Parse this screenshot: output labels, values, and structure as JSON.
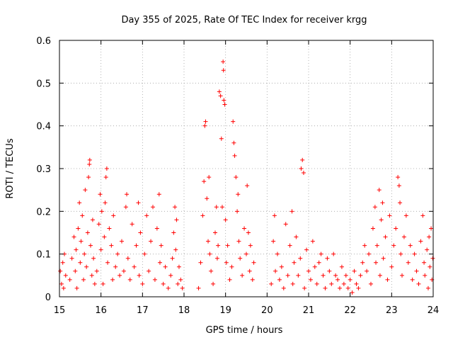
{
  "chart_data": {
    "type": "scatter",
    "title": "Day 355 of 2025, Rate Of TEC Index for receiver krgg",
    "xlabel": "GPS time / hours",
    "ylabel": "ROTI / TECUs",
    "xlim": [
      15,
      24
    ],
    "ylim": [
      0,
      0.6
    ],
    "x_ticks": [
      15,
      16,
      17,
      18,
      19,
      20,
      21,
      22,
      23,
      24
    ],
    "y_ticks": [
      0,
      0.1,
      0.2,
      0.3,
      0.4,
      0.5,
      0.6
    ],
    "x_tick_labels": [
      "15",
      "16",
      "17",
      "18",
      "19",
      "20",
      "21",
      "22",
      "23",
      "24"
    ],
    "y_tick_labels": [
      "0",
      "0.1",
      "0.2",
      "0.3",
      "0.4",
      "0.5",
      "0.6"
    ],
    "grid": true,
    "marker": "+",
    "color": "#ff0000",
    "series": [
      {
        "points": [
          [
            15.02,
            0.06
          ],
          [
            15.05,
            0.03
          ],
          [
            15.08,
            0.08
          ],
          [
            15.1,
            0.02
          ],
          [
            15.12,
            0.1
          ],
          [
            15.15,
            0.05
          ],
          [
            15.25,
            0.04
          ],
          [
            15.3,
            0.09
          ],
          [
            15.35,
            0.14
          ],
          [
            15.38,
            0.06
          ],
          [
            15.4,
            0.11
          ],
          [
            15.42,
            0.02
          ],
          [
            15.45,
            0.16
          ],
          [
            15.48,
            0.22
          ],
          [
            15.5,
            0.08
          ],
          [
            15.52,
            0.13
          ],
          [
            15.55,
            0.19
          ],
          [
            15.58,
            0.04
          ],
          [
            15.6,
            0.1
          ],
          [
            15.62,
            0.25
          ],
          [
            15.65,
            0.07
          ],
          [
            15.68,
            0.15
          ],
          [
            15.7,
            0.28
          ],
          [
            15.72,
            0.31
          ],
          [
            15.73,
            0.32
          ],
          [
            15.75,
            0.12
          ],
          [
            15.78,
            0.05
          ],
          [
            15.8,
            0.18
          ],
          [
            15.82,
            0.09
          ],
          [
            15.85,
            0.03
          ],
          [
            15.9,
            0.06
          ],
          [
            15.95,
            0.17
          ],
          [
            15.98,
            0.24
          ],
          [
            16.0,
            0.11
          ],
          [
            16.02,
            0.2
          ],
          [
            16.05,
            0.03
          ],
          [
            16.08,
            0.14
          ],
          [
            16.1,
            0.22
          ],
          [
            16.12,
            0.28
          ],
          [
            16.14,
            0.3
          ],
          [
            16.16,
            0.08
          ],
          [
            16.2,
            0.16
          ],
          [
            16.25,
            0.12
          ],
          [
            16.28,
            0.04
          ],
          [
            16.3,
            0.19
          ],
          [
            16.35,
            0.07
          ],
          [
            16.4,
            0.1
          ],
          [
            16.45,
            0.05
          ],
          [
            16.5,
            0.13
          ],
          [
            16.55,
            0.06
          ],
          [
            16.6,
            0.21
          ],
          [
            16.62,
            0.24
          ],
          [
            16.65,
            0.09
          ],
          [
            16.7,
            0.04
          ],
          [
            16.75,
            0.17
          ],
          [
            16.8,
            0.07
          ],
          [
            16.85,
            0.12
          ],
          [
            16.9,
            0.22
          ],
          [
            16.92,
            0.05
          ],
          [
            16.95,
            0.15
          ],
          [
            17.0,
            0.03
          ],
          [
            17.05,
            0.1
          ],
          [
            17.1,
            0.19
          ],
          [
            17.15,
            0.06
          ],
          [
            17.2,
            0.13
          ],
          [
            17.25,
            0.21
          ],
          [
            17.3,
            0.04
          ],
          [
            17.35,
            0.16
          ],
          [
            17.4,
            0.24
          ],
          [
            17.42,
            0.08
          ],
          [
            17.45,
            0.12
          ],
          [
            17.5,
            0.03
          ],
          [
            17.55,
            0.07
          ],
          [
            17.62,
            0.02
          ],
          [
            17.68,
            0.05
          ],
          [
            17.72,
            0.09
          ],
          [
            17.75,
            0.15
          ],
          [
            17.78,
            0.21
          ],
          [
            17.8,
            0.11
          ],
          [
            17.82,
            0.18
          ],
          [
            17.85,
            0.03
          ],
          [
            17.88,
            0.07
          ],
          [
            17.92,
            0.04
          ],
          [
            17.96,
            0.02
          ],
          [
            18.35,
            0.02
          ],
          [
            18.4,
            0.08
          ],
          [
            18.45,
            0.19
          ],
          [
            18.48,
            0.27
          ],
          [
            18.5,
            0.4
          ],
          [
            18.52,
            0.41
          ],
          [
            18.55,
            0.23
          ],
          [
            18.58,
            0.13
          ],
          [
            18.6,
            0.28
          ],
          [
            18.62,
            0.1
          ],
          [
            18.65,
            0.06
          ],
          [
            18.7,
            0.03
          ],
          [
            18.75,
            0.15
          ],
          [
            18.78,
            0.21
          ],
          [
            18.8,
            0.09
          ],
          [
            18.82,
            0.12
          ],
          [
            18.85,
            0.48
          ],
          [
            18.88,
            0.47
          ],
          [
            18.9,
            0.37
          ],
          [
            18.92,
            0.21
          ],
          [
            18.94,
            0.55
          ],
          [
            18.95,
            0.53
          ],
          [
            18.96,
            0.46
          ],
          [
            18.98,
            0.45
          ],
          [
            19.0,
            0.18
          ],
          [
            19.02,
            0.08
          ],
          [
            19.05,
            0.12
          ],
          [
            19.1,
            0.04
          ],
          [
            19.15,
            0.07
          ],
          [
            19.18,
            0.41
          ],
          [
            19.2,
            0.36
          ],
          [
            19.22,
            0.33
          ],
          [
            19.25,
            0.28
          ],
          [
            19.28,
            0.2
          ],
          [
            19.3,
            0.24
          ],
          [
            19.32,
            0.13
          ],
          [
            19.35,
            0.09
          ],
          [
            19.4,
            0.05
          ],
          [
            19.45,
            0.16
          ],
          [
            19.5,
            0.1
          ],
          [
            19.52,
            0.26
          ],
          [
            19.55,
            0.15
          ],
          [
            19.58,
            0.06
          ],
          [
            19.6,
            0.12
          ],
          [
            19.65,
            0.04
          ],
          [
            19.68,
            0.08
          ],
          [
            20.1,
            0.03
          ],
          [
            20.15,
            0.13
          ],
          [
            20.18,
            0.19
          ],
          [
            20.2,
            0.06
          ],
          [
            20.25,
            0.1
          ],
          [
            20.3,
            0.04
          ],
          [
            20.35,
            0.07
          ],
          [
            20.4,
            0.02
          ],
          [
            20.45,
            0.17
          ],
          [
            20.5,
            0.05
          ],
          [
            20.55,
            0.12
          ],
          [
            20.6,
            0.2
          ],
          [
            20.62,
            0.03
          ],
          [
            20.65,
            0.08
          ],
          [
            20.7,
            0.14
          ],
          [
            20.75,
            0.05
          ],
          [
            20.8,
            0.09
          ],
          [
            20.82,
            0.3
          ],
          [
            20.85,
            0.32
          ],
          [
            20.88,
            0.29
          ],
          [
            20.9,
            0.02
          ],
          [
            20.95,
            0.11
          ],
          [
            21.0,
            0.06
          ],
          [
            21.05,
            0.04
          ],
          [
            21.1,
            0.13
          ],
          [
            21.15,
            0.07
          ],
          [
            21.2,
            0.03
          ],
          [
            21.25,
            0.08
          ],
          [
            21.3,
            0.1
          ],
          [
            21.35,
            0.05
          ],
          [
            21.4,
            0.02
          ],
          [
            21.45,
            0.09
          ],
          [
            21.5,
            0.06
          ],
          [
            21.55,
            0.03
          ],
          [
            21.6,
            0.1
          ],
          [
            21.65,
            0.05
          ],
          [
            21.7,
            0.04
          ],
          [
            21.75,
            0.02
          ],
          [
            21.8,
            0.07
          ],
          [
            21.85,
            0.03
          ],
          [
            21.9,
            0.05
          ],
          [
            21.95,
            0.02
          ],
          [
            22.0,
            0.04
          ],
          [
            22.05,
            0.01
          ],
          [
            22.1,
            0.06
          ],
          [
            22.15,
            0.03
          ],
          [
            22.2,
            0.02
          ],
          [
            22.25,
            0.05
          ],
          [
            22.3,
            0.08
          ],
          [
            22.35,
            0.12
          ],
          [
            22.4,
            0.06
          ],
          [
            22.45,
            0.1
          ],
          [
            22.5,
            0.03
          ],
          [
            22.55,
            0.16
          ],
          [
            22.6,
            0.21
          ],
          [
            22.62,
            0.08
          ],
          [
            22.65,
            0.12
          ],
          [
            22.7,
            0.25
          ],
          [
            22.72,
            0.05
          ],
          [
            22.75,
            0.18
          ],
          [
            22.78,
            0.22
          ],
          [
            22.8,
            0.09
          ],
          [
            22.85,
            0.14
          ],
          [
            22.9,
            0.04
          ],
          [
            22.95,
            0.19
          ],
          [
            23.0,
            0.07
          ],
          [
            23.05,
            0.12
          ],
          [
            23.1,
            0.16
          ],
          [
            23.15,
            0.28
          ],
          [
            23.18,
            0.26
          ],
          [
            23.2,
            0.22
          ],
          [
            23.22,
            0.1
          ],
          [
            23.25,
            0.05
          ],
          [
            23.3,
            0.14
          ],
          [
            23.35,
            0.19
          ],
          [
            23.4,
            0.08
          ],
          [
            23.45,
            0.12
          ],
          [
            23.5,
            0.04
          ],
          [
            23.55,
            0.1
          ],
          [
            23.6,
            0.06
          ],
          [
            23.65,
            0.03
          ],
          [
            23.7,
            0.13
          ],
          [
            23.75,
            0.19
          ],
          [
            23.78,
            0.08
          ],
          [
            23.8,
            0.05
          ],
          [
            23.85,
            0.11
          ],
          [
            23.88,
            0.02
          ],
          [
            23.9,
            0.14
          ],
          [
            23.92,
            0.07
          ],
          [
            23.95,
            0.16
          ],
          [
            23.97,
            0.04
          ],
          [
            23.99,
            0.09
          ]
        ]
      }
    ]
  }
}
